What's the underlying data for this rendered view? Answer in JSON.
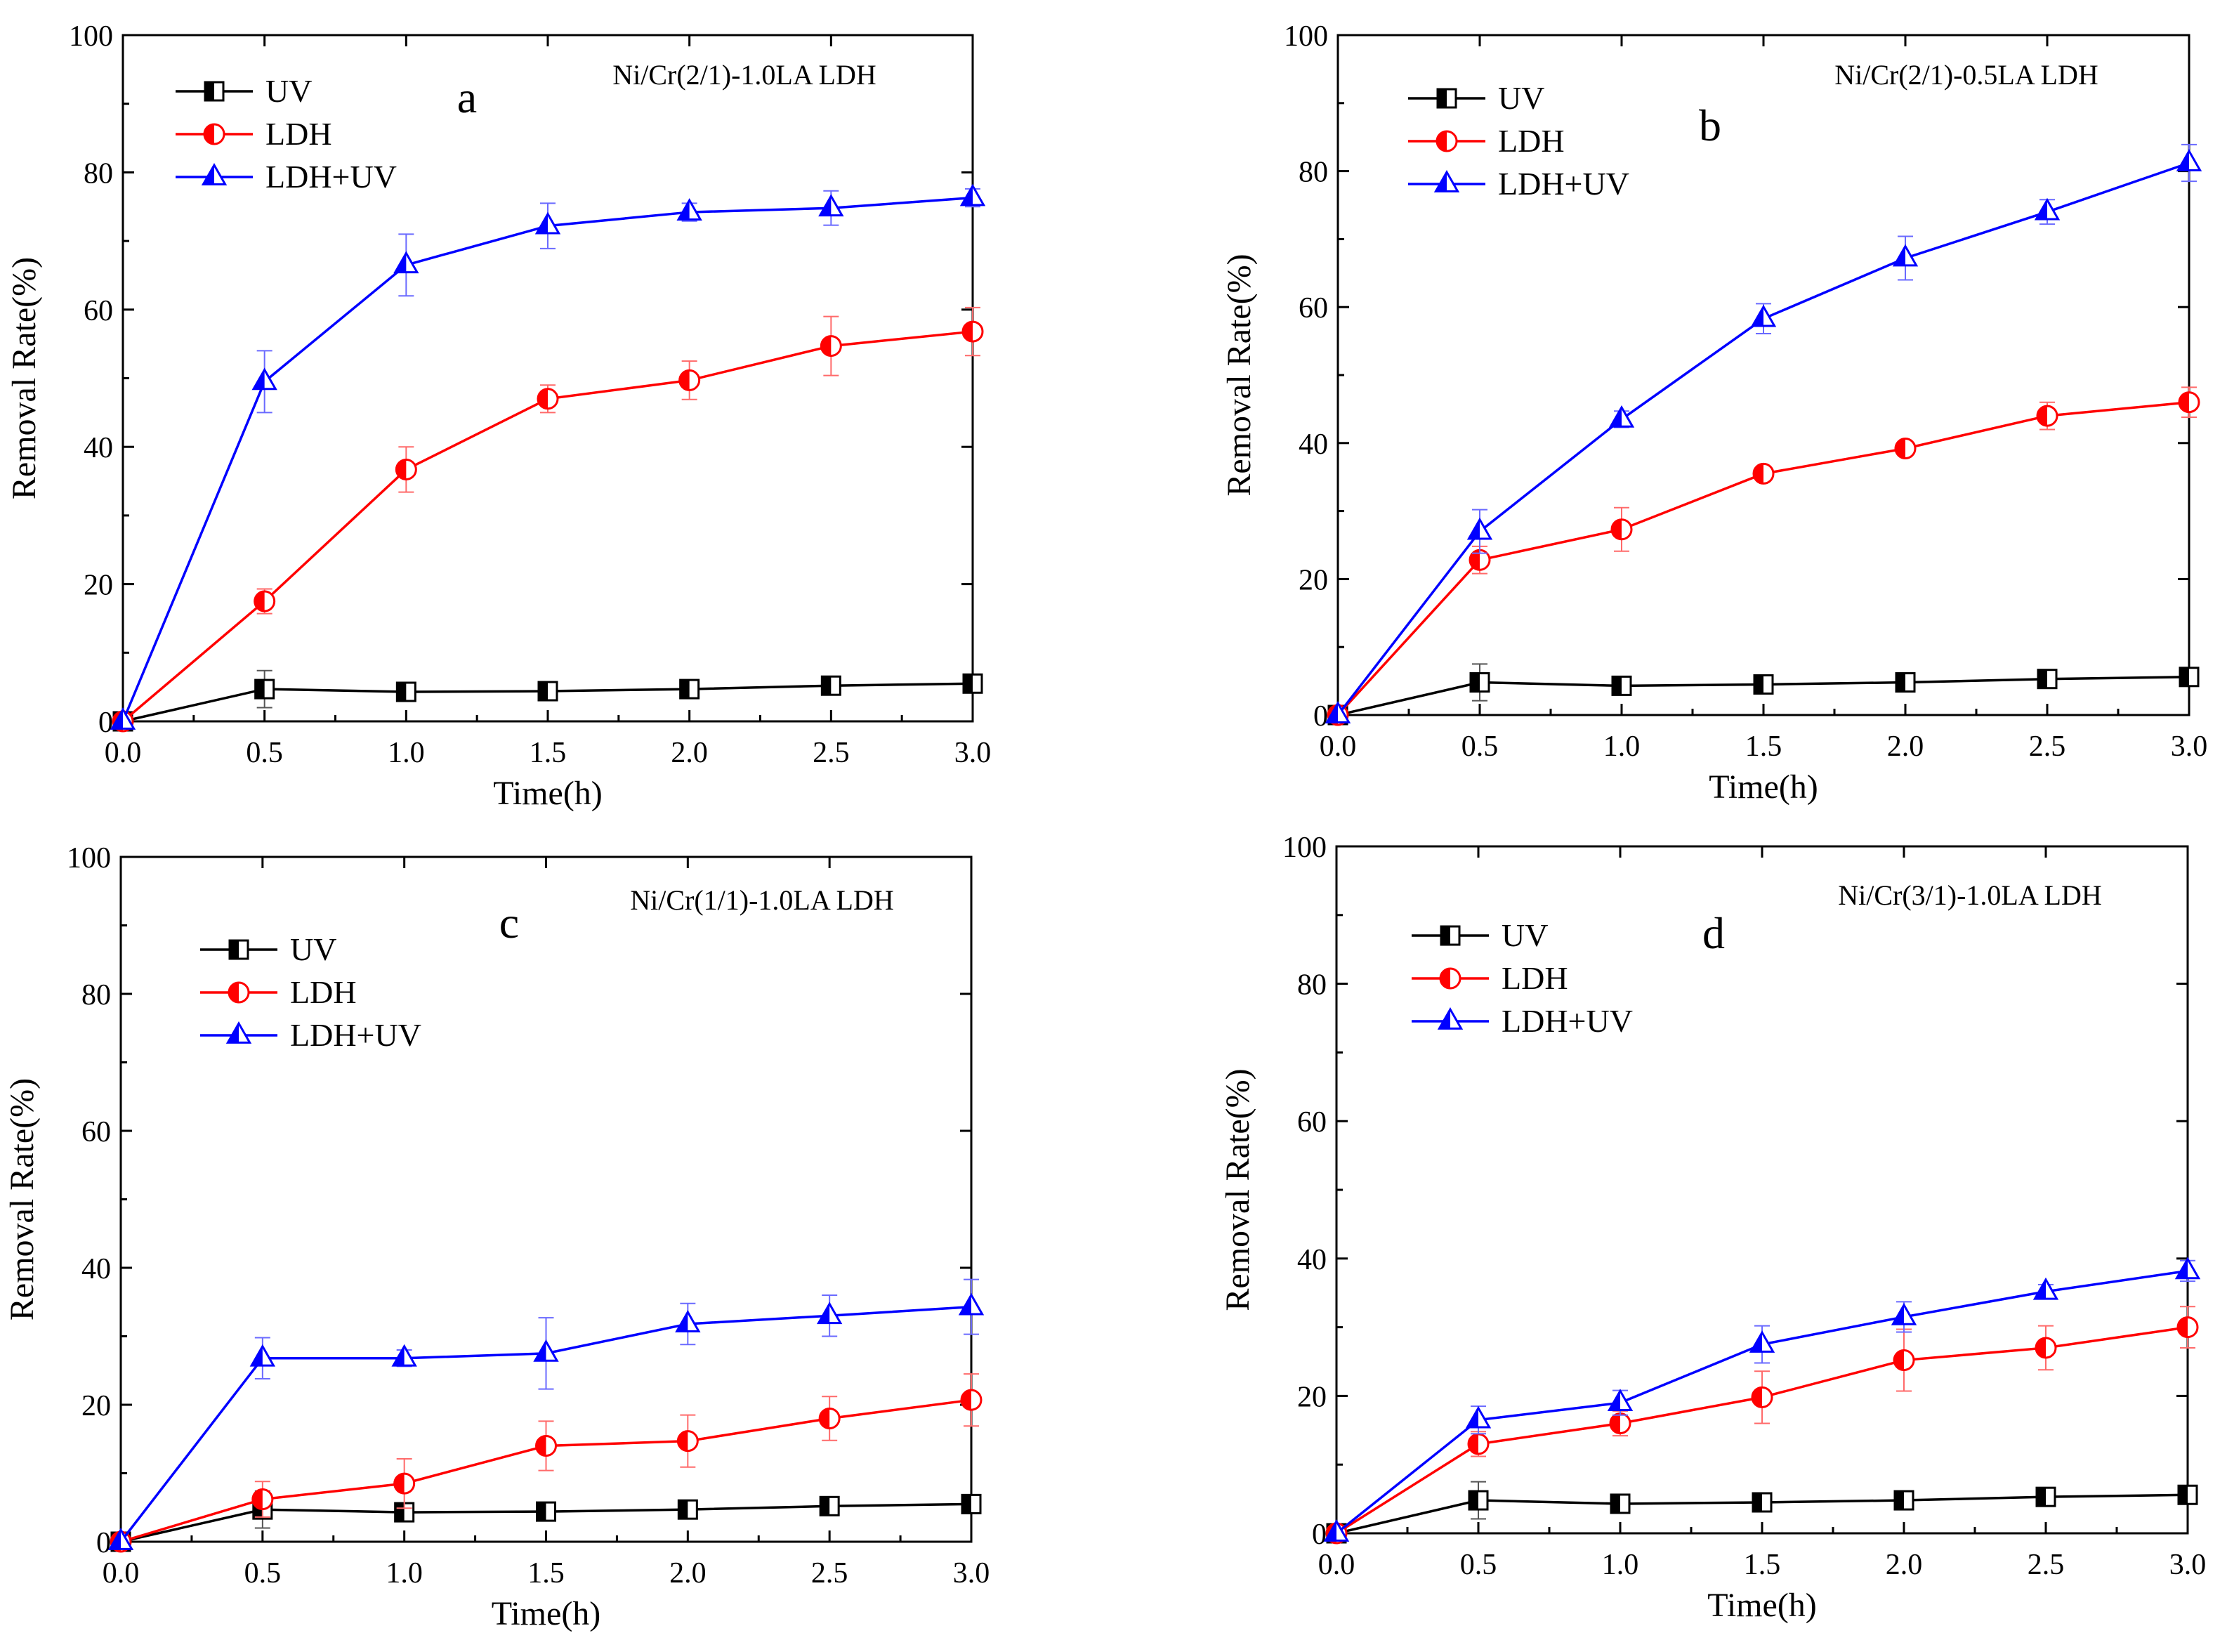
{
  "chart_data": [
    {
      "type": "line",
      "panel": "a",
      "title": "",
      "annotation": "Ni/Cr(2/1)-1.0LA LDH",
      "xlabel": "Time(h)",
      "ylabel": "Removal Rate(%)",
      "xlim": [
        0,
        3
      ],
      "ylim": [
        0,
        100
      ],
      "xticks": [
        "0.0",
        "0.5",
        "1.0",
        "1.5",
        "2.0",
        "2.5",
        "3.0"
      ],
      "yticks": [
        "0",
        "20",
        "40",
        "60",
        "80",
        "100"
      ],
      "grid": false,
      "legend_position": "top-left",
      "x": [
        0,
        0.5,
        1.0,
        1.5,
        2.0,
        2.5,
        3.0
      ],
      "series": [
        {
          "name": "UV",
          "color": "#000000",
          "marker": "square",
          "values": [
            0,
            4.7,
            4.3,
            4.4,
            4.7,
            5.2,
            5.5
          ],
          "errors": [
            0,
            2.7,
            0.5,
            0.4,
            0.5,
            0.6,
            0.7
          ]
        },
        {
          "name": "LDH",
          "color": "#ff0000",
          "marker": "circle",
          "values": [
            0,
            17.5,
            36.7,
            47.0,
            49.7,
            54.7,
            56.8
          ],
          "errors": [
            0,
            1.8,
            3.3,
            2.0,
            2.8,
            4.3,
            3.5
          ]
        },
        {
          "name": "LDH+UV",
          "color": "#0000ff",
          "marker": "triangle",
          "values": [
            0,
            49.5,
            66.5,
            72.2,
            74.2,
            74.8,
            76.3
          ],
          "errors": [
            0,
            4.5,
            4.5,
            3.3,
            1.3,
            2.5,
            1.3
          ]
        }
      ]
    },
    {
      "type": "line",
      "panel": "b",
      "title": "",
      "annotation": "Ni/Cr(2/1)-0.5LA LDH",
      "xlabel": "Time(h)",
      "ylabel": "Removal Rate(%)",
      "xlim": [
        0,
        3
      ],
      "ylim": [
        0,
        100
      ],
      "xticks": [
        "0.0",
        "0.5",
        "1.0",
        "1.5",
        "2.0",
        "2.5",
        "3.0"
      ],
      "yticks": [
        "0",
        "20",
        "40",
        "60",
        "80",
        "100"
      ],
      "grid": false,
      "legend_position": "top-left",
      "x": [
        0,
        0.5,
        1.0,
        1.5,
        2.0,
        2.5,
        3.0
      ],
      "series": [
        {
          "name": "UV",
          "color": "#000000",
          "marker": "square",
          "values": [
            0,
            4.8,
            4.3,
            4.5,
            4.8,
            5.3,
            5.6
          ],
          "errors": [
            0,
            2.7,
            0.5,
            0.4,
            0.5,
            0.6,
            0.7
          ]
        },
        {
          "name": "LDH",
          "color": "#ff0000",
          "marker": "circle",
          "values": [
            0,
            22.8,
            27.3,
            35.5,
            39.2,
            44.0,
            46.0
          ],
          "errors": [
            0,
            2.0,
            3.2,
            1.0,
            0.8,
            2.0,
            2.2
          ]
        },
        {
          "name": "LDH+UV",
          "color": "#0000ff",
          "marker": "triangle",
          "values": [
            0,
            27.0,
            43.5,
            58.3,
            67.2,
            74.0,
            81.2
          ],
          "errors": [
            0,
            3.2,
            1.2,
            2.2,
            3.2,
            1.8,
            2.7
          ]
        }
      ]
    },
    {
      "type": "line",
      "panel": "c",
      "title": "",
      "annotation": "Ni/Cr(1/1)-1.0LA LDH",
      "xlabel": "Time(h)",
      "ylabel": "Removal Rate(%)",
      "xlim": [
        0,
        3
      ],
      "ylim": [
        0,
        100
      ],
      "xticks": [
        "0.0",
        "0.5",
        "1.0",
        "1.5",
        "2.0",
        "2.5",
        "3.0"
      ],
      "yticks": [
        "0",
        "20",
        "40",
        "60",
        "80",
        "100"
      ],
      "grid": false,
      "legend_position": "top-left",
      "x": [
        0,
        0.5,
        1.0,
        1.5,
        2.0,
        2.5,
        3.0
      ],
      "series": [
        {
          "name": "UV",
          "color": "#000000",
          "marker": "square",
          "values": [
            0,
            4.7,
            4.3,
            4.4,
            4.7,
            5.2,
            5.5
          ],
          "errors": [
            0,
            2.7,
            0.5,
            0.4,
            0.5,
            0.6,
            0.7
          ]
        },
        {
          "name": "LDH",
          "color": "#ff0000",
          "marker": "circle",
          "values": [
            0,
            6.2,
            8.5,
            14.0,
            14.7,
            18.0,
            20.7
          ],
          "errors": [
            0,
            2.6,
            3.6,
            3.6,
            3.8,
            3.2,
            3.8
          ]
        },
        {
          "name": "LDH+UV",
          "color": "#0000ff",
          "marker": "triangle",
          "values": [
            0,
            26.8,
            26.8,
            27.5,
            31.8,
            33.0,
            34.3
          ],
          "errors": [
            0,
            3.0,
            1.2,
            5.2,
            3.0,
            3.0,
            4.0
          ]
        }
      ]
    },
    {
      "type": "line",
      "panel": "d",
      "title": "",
      "annotation": "Ni/Cr(3/1)-1.0LA LDH",
      "xlabel": "Time(h)",
      "ylabel": "Removal Rate(%)",
      "xlim": [
        0,
        3
      ],
      "ylim": [
        0,
        100
      ],
      "xticks": [
        "0.0",
        "0.5",
        "1.0",
        "1.5",
        "2.0",
        "2.5",
        "3.0"
      ],
      "yticks": [
        "0",
        "20",
        "40",
        "60",
        "80",
        "100"
      ],
      "grid": false,
      "legend_position": "top-left",
      "x": [
        0,
        0.5,
        1.0,
        1.5,
        2.0,
        2.5,
        3.0
      ],
      "series": [
        {
          "name": "UV",
          "color": "#000000",
          "marker": "square",
          "values": [
            0,
            4.8,
            4.3,
            4.5,
            4.8,
            5.3,
            5.6
          ],
          "errors": [
            0,
            2.7,
            0.5,
            0.4,
            0.5,
            0.6,
            0.7
          ]
        },
        {
          "name": "LDH",
          "color": "#ff0000",
          "marker": "circle",
          "values": [
            0,
            13.0,
            16.0,
            19.8,
            25.2,
            27.0,
            30.0
          ],
          "errors": [
            0,
            1.8,
            1.8,
            3.8,
            4.5,
            3.2,
            3.0
          ]
        },
        {
          "name": "LDH+UV",
          "color": "#0000ff",
          "marker": "triangle",
          "values": [
            0,
            16.5,
            19.0,
            27.5,
            31.5,
            35.2,
            38.2
          ],
          "errors": [
            0,
            2.0,
            1.8,
            2.7,
            2.2,
            1.0,
            1.5
          ]
        }
      ]
    }
  ]
}
